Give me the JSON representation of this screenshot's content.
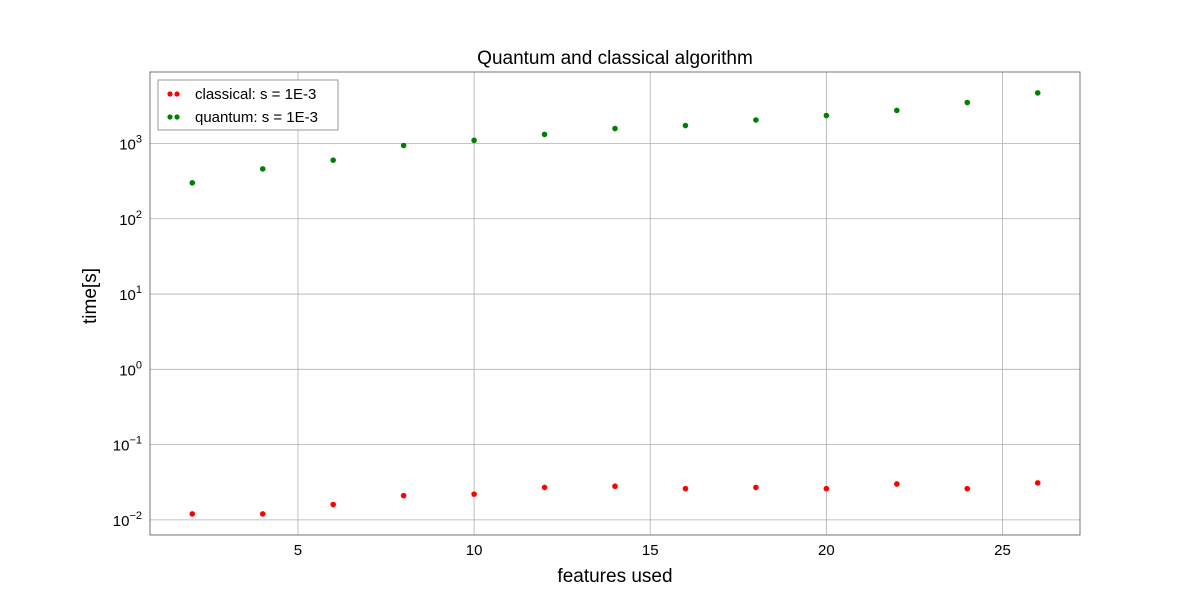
{
  "chart_data": {
    "type": "scatter",
    "title": "Quantum and classical algorithm",
    "xlabel": "features used",
    "ylabel": "time[s]",
    "yscale": "log",
    "xlim": [
      0.8,
      27.2
    ],
    "ylim": [
      0.0063,
      8900
    ],
    "x_ticks": [
      5,
      10,
      15,
      20,
      25
    ],
    "y_ticks": [
      {
        "value": 0.01,
        "base": "10",
        "exp": "−2"
      },
      {
        "value": 0.1,
        "base": "10",
        "exp": "−1"
      },
      {
        "value": 1,
        "base": "10",
        "exp": "0"
      },
      {
        "value": 10,
        "base": "10",
        "exp": "1"
      },
      {
        "value": 100,
        "base": "10",
        "exp": "2"
      },
      {
        "value": 1000,
        "base": "10",
        "exp": "3"
      }
    ],
    "grid": true,
    "legend_position": "upper-left",
    "series": [
      {
        "name": "classical: s = 1E-3",
        "color": "#ff0000",
        "x": [
          2,
          4,
          6,
          8,
          10,
          12,
          14,
          16,
          18,
          20,
          22,
          24,
          26
        ],
        "y": [
          0.012,
          0.012,
          0.016,
          0.021,
          0.022,
          0.027,
          0.028,
          0.026,
          0.027,
          0.026,
          0.03,
          0.026,
          0.031
        ]
      },
      {
        "name": "quantum: s = 1E-3",
        "color": "#008000",
        "x": [
          2,
          4,
          6,
          8,
          10,
          12,
          14,
          16,
          18,
          20,
          22,
          24,
          26
        ],
        "y": [
          300,
          460,
          600,
          940,
          1100,
          1320,
          1580,
          1730,
          2050,
          2350,
          2750,
          3500,
          4700
        ]
      }
    ]
  }
}
